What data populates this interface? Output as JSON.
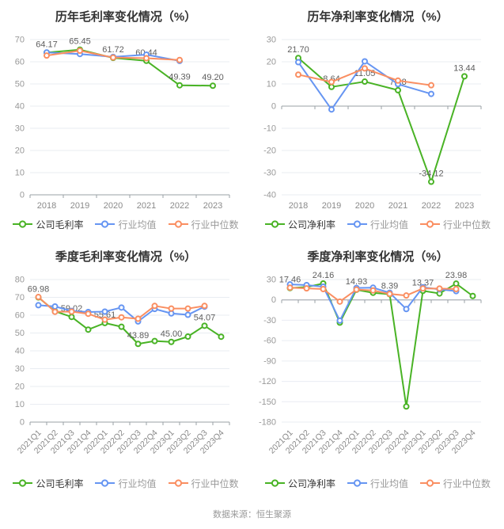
{
  "page": {
    "source_note": "数据来源：恒生聚源"
  },
  "colors": {
    "company_green": "#49b325",
    "industry_mean_blue": "#6695f2",
    "industry_median_orange": "#fa8e61",
    "grid_line": "#e9ecf2",
    "axis_line": "#9aa0a6",
    "title_text": "#333333",
    "point_label_text": "#5e5e5e",
    "tick_text": "#999999",
    "legend_active_text": "#333333",
    "legend_muted_text": "#999999"
  },
  "chart_data": [
    {
      "type": "line",
      "title": "历年毛利率变化情况（%）",
      "categories": [
        "2018",
        "2019",
        "2020",
        "2021",
        "2022",
        "2023"
      ],
      "yticks": [
        0,
        10,
        20,
        30,
        40,
        50,
        60,
        70
      ],
      "ylim": [
        0,
        70
      ],
      "legend_position": "bottom",
      "grid": true,
      "series": [
        {
          "name": "公司毛利率",
          "color": "#49b325",
          "values": [
            64.17,
            65.45,
            61.72,
            60.44,
            49.39,
            49.2
          ],
          "point_labels": [
            "64.17",
            "65.45",
            "61.72",
            "60.44",
            "49.39",
            "49.20"
          ]
        },
        {
          "name": "行业均值",
          "color": "#6695f2",
          "values": [
            64.2,
            63.5,
            62.2,
            63.2,
            60.4,
            null
          ]
        },
        {
          "name": "行业中位数",
          "color": "#fa8e61",
          "values": [
            62.8,
            65.0,
            61.9,
            61.6,
            60.8,
            null
          ]
        }
      ]
    },
    {
      "type": "line",
      "title": "历年净利率变化情况（%）",
      "categories": [
        "2018",
        "2019",
        "2020",
        "2021",
        "2022",
        "2023"
      ],
      "yticks": [
        -40,
        -30,
        -20,
        -10,
        0,
        10,
        20,
        30
      ],
      "ylim": [
        -40,
        30
      ],
      "legend_position": "bottom",
      "grid": true,
      "series": [
        {
          "name": "公司净利率",
          "color": "#49b325",
          "values": [
            21.7,
            8.64,
            11.05,
            7.18,
            -34.12,
            13.44
          ],
          "point_labels": [
            "21.70",
            "8.64",
            "11.05",
            "7.18",
            "-34.12",
            "13.44"
          ]
        },
        {
          "name": "行业均值",
          "color": "#6695f2",
          "values": [
            19.8,
            -1.5,
            20.2,
            9.9,
            5.5,
            null
          ]
        },
        {
          "name": "行业中位数",
          "color": "#fa8e61",
          "values": [
            14.2,
            10.9,
            17.0,
            11.5,
            9.4,
            null
          ]
        }
      ]
    },
    {
      "type": "line",
      "title": "季度毛利率变化情况（%）",
      "categories": [
        "2021Q1",
        "2021Q2",
        "2021Q3",
        "2021Q4",
        "2022Q1",
        "2022Q2",
        "2022Q3",
        "2022Q4",
        "2023Q1",
        "2023Q2",
        "2023Q3",
        "2023Q4"
      ],
      "yticks": [
        0,
        10,
        20,
        30,
        40,
        50,
        60,
        70,
        80
      ],
      "ylim": [
        0,
        80
      ],
      "legend_position": "bottom",
      "grid": true,
      "series": [
        {
          "name": "公司毛利率",
          "color": "#49b325",
          "values": [
            69.98,
            62.2,
            59.02,
            51.9,
            55.61,
            53.5,
            43.89,
            45.5,
            45.0,
            48.0,
            54.07,
            47.9
          ],
          "point_labels": [
            "69.98",
            null,
            "59.02",
            null,
            "55.61",
            null,
            "43.89",
            null,
            "45.00",
            null,
            "54.07",
            null
          ]
        },
        {
          "name": "行业均值",
          "color": "#6695f2",
          "values": [
            65.6,
            64.9,
            62.4,
            61.8,
            62.0,
            64.3,
            56.5,
            63.5,
            61.0,
            60.2,
            64.8,
            null
          ]
        },
        {
          "name": "行业中位数",
          "color": "#fa8e61",
          "values": [
            70.2,
            61.9,
            62.0,
            60.8,
            57.5,
            58.8,
            58.0,
            65.2,
            63.7,
            63.7,
            65.2,
            null
          ]
        }
      ]
    },
    {
      "type": "line",
      "title": "季度净利率变化情况（%）",
      "categories": [
        "2021Q1",
        "2021Q2",
        "2021Q3",
        "2021Q4",
        "2022Q1",
        "2022Q2",
        "2022Q3",
        "2022Q4",
        "2023Q1",
        "2023Q2",
        "2023Q3",
        "2023Q4"
      ],
      "yticks": [
        -180,
        -150,
        -120,
        -90,
        -60,
        -30,
        0,
        30
      ],
      "ylim": [
        -180,
        30
      ],
      "legend_position": "bottom",
      "grid": true,
      "series": [
        {
          "name": "公司净利率",
          "color": "#49b325",
          "values": [
            17.46,
            19.0,
            24.16,
            -33.5,
            14.93,
            10.5,
            8.39,
            -157.0,
            13.37,
            9.5,
            23.98,
            5.8
          ],
          "point_labels": [
            "17.46",
            null,
            "24.16",
            null,
            "14.93",
            null,
            "8.39",
            null,
            "13.37",
            null,
            "23.98",
            null
          ]
        },
        {
          "name": "行业均值",
          "color": "#6695f2",
          "values": [
            22.8,
            21.9,
            19.5,
            -30.5,
            17.6,
            18.0,
            10.5,
            -13.5,
            18.6,
            15.6,
            12.9,
            null
          ]
        },
        {
          "name": "行业中位数",
          "color": "#fa8e61",
          "values": [
            18.0,
            17.0,
            16.0,
            -2.5,
            15.2,
            14.0,
            8.8,
            6.5,
            16.9,
            16.8,
            16.0,
            null
          ]
        }
      ]
    }
  ]
}
